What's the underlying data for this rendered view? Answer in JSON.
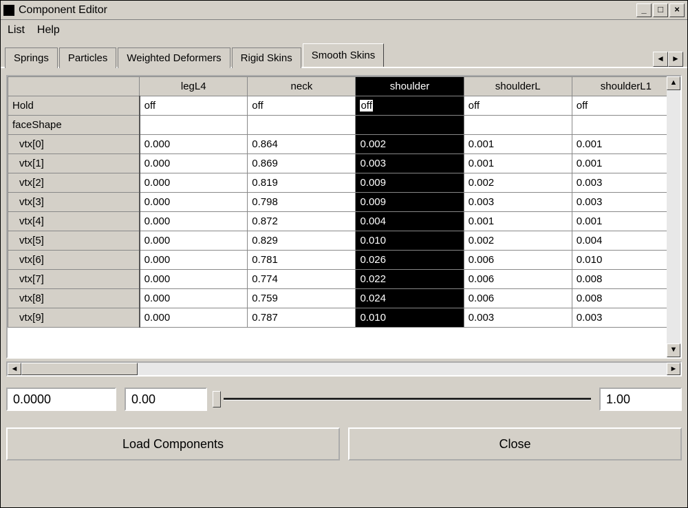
{
  "window": {
    "title": "Component Editor"
  },
  "menubar": {
    "items": [
      "List",
      "Help"
    ]
  },
  "tabs": {
    "items": [
      "Springs",
      "Particles",
      "Weighted Deformers",
      "Rigid Skins",
      "Smooth Skins"
    ],
    "active_index": 4
  },
  "table": {
    "columns": [
      "",
      "legL4",
      "neck",
      "shoulder",
      "shoulderL",
      "shoulderL1"
    ],
    "selected_column_index": 3,
    "editing_cell": {
      "row": 0,
      "col": 3
    },
    "rows": [
      {
        "label": "Hold",
        "indent": false,
        "cells": [
          "off",
          "off",
          "off",
          "off",
          "off"
        ]
      },
      {
        "label": "faceShape",
        "indent": false,
        "cells": [
          "",
          "",
          "",
          "",
          ""
        ]
      },
      {
        "label": "vtx[0]",
        "indent": true,
        "cells": [
          "0.000",
          "0.864",
          "0.002",
          "0.001",
          "0.001"
        ]
      },
      {
        "label": "vtx[1]",
        "indent": true,
        "cells": [
          "0.000",
          "0.869",
          "0.003",
          "0.001",
          "0.001"
        ]
      },
      {
        "label": "vtx[2]",
        "indent": true,
        "cells": [
          "0.000",
          "0.819",
          "0.009",
          "0.002",
          "0.003"
        ]
      },
      {
        "label": "vtx[3]",
        "indent": true,
        "cells": [
          "0.000",
          "0.798",
          "0.009",
          "0.003",
          "0.003"
        ]
      },
      {
        "label": "vtx[4]",
        "indent": true,
        "cells": [
          "0.000",
          "0.872",
          "0.004",
          "0.001",
          "0.001"
        ]
      },
      {
        "label": "vtx[5]",
        "indent": true,
        "cells": [
          "0.000",
          "0.829",
          "0.010",
          "0.002",
          "0.004"
        ]
      },
      {
        "label": "vtx[6]",
        "indent": true,
        "cells": [
          "0.000",
          "0.781",
          "0.026",
          "0.006",
          "0.010"
        ]
      },
      {
        "label": "vtx[7]",
        "indent": true,
        "cells": [
          "0.000",
          "0.774",
          "0.022",
          "0.006",
          "0.008"
        ]
      },
      {
        "label": "vtx[8]",
        "indent": true,
        "cells": [
          "0.000",
          "0.759",
          "0.024",
          "0.006",
          "0.008"
        ]
      },
      {
        "label": "vtx[9]",
        "indent": true,
        "cells": [
          "0.000",
          "0.787",
          "0.010",
          "0.003",
          "0.003"
        ]
      }
    ]
  },
  "slider": {
    "value_input": "0.0000",
    "min_input": "0.00",
    "max_input": "1.00"
  },
  "buttons": {
    "load": "Load Components",
    "close": "Close"
  },
  "colors": {
    "window_bg": "#d4d0c8",
    "selected_bg": "#000000",
    "selected_fg": "#ffffff",
    "cell_bg": "#ffffff",
    "border": "#808080"
  }
}
